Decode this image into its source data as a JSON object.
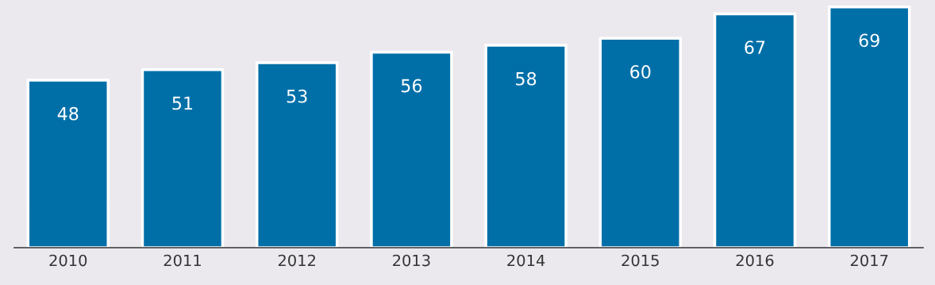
{
  "chart_data": {
    "type": "bar",
    "categories": [
      "2010",
      "2011",
      "2012",
      "2013",
      "2014",
      "2015",
      "2016",
      "2017"
    ],
    "values": [
      48,
      51,
      53,
      56,
      58,
      60,
      67,
      69
    ],
    "color": "#006fa8",
    "ylim": [
      0,
      70.9
    ],
    "tick_labels": "x",
    "data_labels": true,
    "grid": false,
    "legend": false
  }
}
